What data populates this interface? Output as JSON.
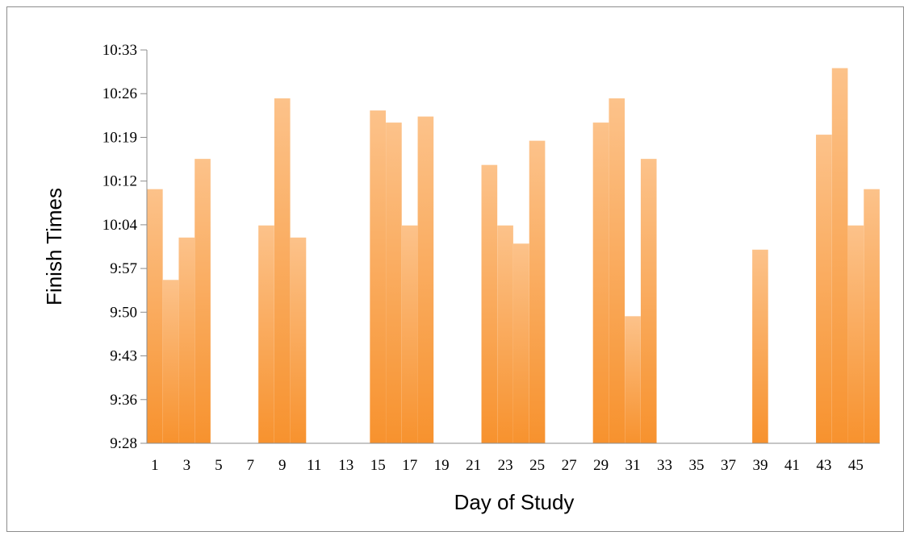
{
  "chart_data": {
    "type": "bar",
    "title": "",
    "xlabel": "Day of Study",
    "ylabel": "Finish Times",
    "y_tick_labels": [
      "9:28",
      "9:36",
      "9:43",
      "9:50",
      "9:57",
      "10:04",
      "10:12",
      "10:19",
      "10:26",
      "10:33"
    ],
    "ylim": [
      "9:28",
      "10:33"
    ],
    "x_tick_labels": [
      "1",
      "3",
      "5",
      "7",
      "9",
      "11",
      "13",
      "15",
      "17",
      "19",
      "21",
      "23",
      "25",
      "27",
      "29",
      "31",
      "33",
      "35",
      "37",
      "39",
      "41",
      "43",
      "45"
    ],
    "categories": [
      "1",
      "2",
      "3",
      "4",
      "5",
      "6",
      "7",
      "8",
      "9",
      "10",
      "11",
      "12",
      "13",
      "14",
      "15",
      "16",
      "17",
      "18",
      "19",
      "20",
      "21",
      "22",
      "23",
      "24",
      "25",
      "26",
      "27",
      "28",
      "29",
      "30",
      "31",
      "32",
      "33",
      "34",
      "35",
      "36",
      "37",
      "38",
      "39",
      "40",
      "41",
      "42",
      "43",
      "44",
      "45",
      "46"
    ],
    "values": [
      "10:10",
      "9:55",
      "10:02",
      "10:15",
      null,
      null,
      null,
      "10:04",
      "10:25",
      "10:02",
      null,
      null,
      null,
      null,
      "10:23",
      "10:21",
      "10:04",
      "10:22",
      null,
      null,
      null,
      "10:14",
      "10:04",
      "10:01",
      "10:18",
      null,
      null,
      null,
      "10:21",
      "10:25",
      "9:49",
      "10:15",
      null,
      null,
      null,
      null,
      null,
      null,
      "10:00",
      null,
      null,
      null,
      "10:19",
      "10:30",
      "10:04",
      "10:10"
    ],
    "grid": false,
    "legend": "none",
    "bar_color": "#f7922e"
  }
}
